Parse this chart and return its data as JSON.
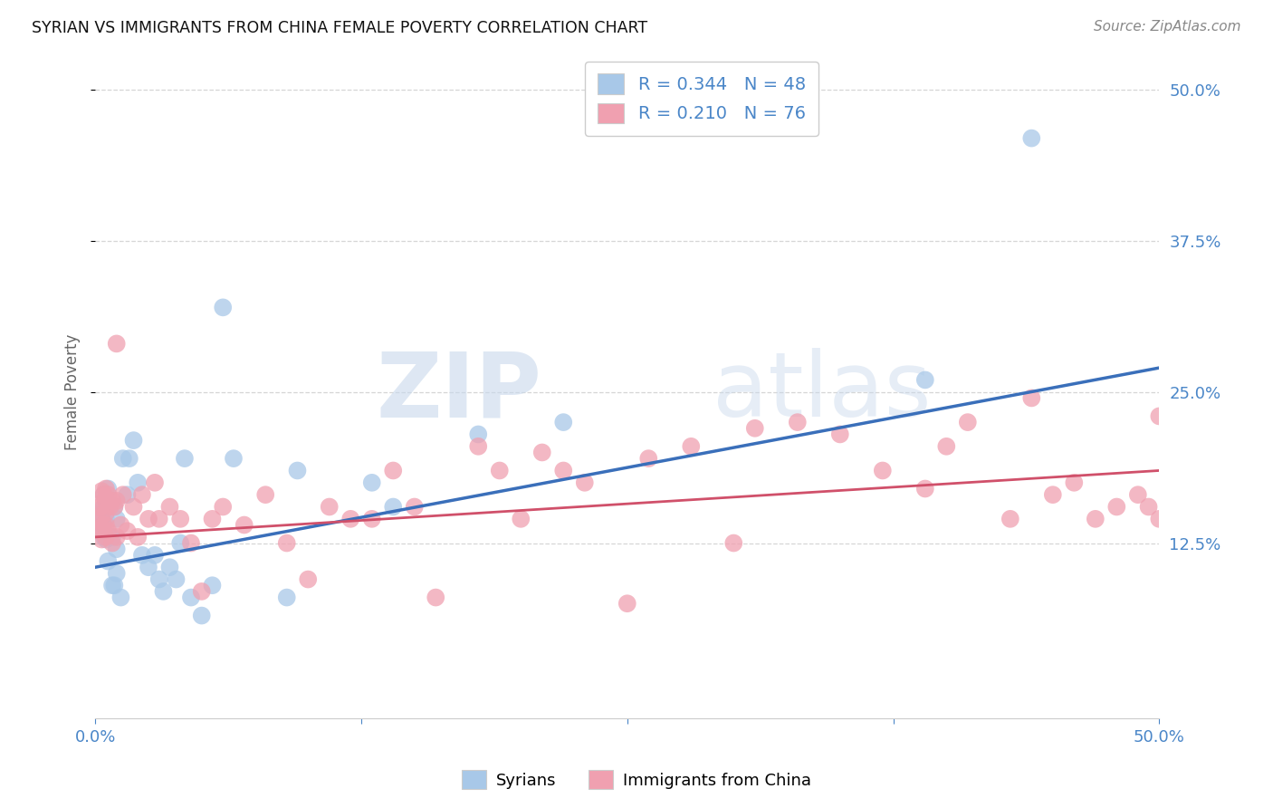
{
  "title": "SYRIAN VS IMMIGRANTS FROM CHINA FEMALE POVERTY CORRELATION CHART",
  "source": "Source: ZipAtlas.com",
  "ylabel": "Female Poverty",
  "xlim": [
    0.0,
    0.5
  ],
  "ylim": [
    -0.02,
    0.52
  ],
  "ytick_values": [
    0.125,
    0.25,
    0.375,
    0.5
  ],
  "xtick_values": [
    0.0,
    0.5
  ],
  "blue_R": 0.344,
  "blue_N": 48,
  "pink_R": 0.21,
  "pink_N": 76,
  "blue_color": "#a8c8e8",
  "pink_color": "#f0a0b0",
  "blue_line_color": "#3a6fba",
  "pink_line_color": "#d0506a",
  "legend_label_blue": "Syrians",
  "legend_label_pink": "Immigrants from China",
  "watermark_zip": "ZIP",
  "watermark_atlas": "atlas",
  "blue_scatter_x": [
    0.002,
    0.003,
    0.003,
    0.004,
    0.004,
    0.004,
    0.004,
    0.005,
    0.005,
    0.005,
    0.006,
    0.006,
    0.007,
    0.008,
    0.008,
    0.009,
    0.009,
    0.01,
    0.01,
    0.01,
    0.012,
    0.013,
    0.015,
    0.016,
    0.018,
    0.02,
    0.022,
    0.025,
    0.028,
    0.03,
    0.032,
    0.035,
    0.038,
    0.04,
    0.042,
    0.045,
    0.05,
    0.055,
    0.06,
    0.065,
    0.09,
    0.095,
    0.13,
    0.14,
    0.18,
    0.22,
    0.39,
    0.44
  ],
  "blue_scatter_y": [
    0.14,
    0.145,
    0.15,
    0.13,
    0.135,
    0.155,
    0.165,
    0.128,
    0.145,
    0.16,
    0.11,
    0.17,
    0.13,
    0.09,
    0.13,
    0.09,
    0.155,
    0.1,
    0.12,
    0.145,
    0.08,
    0.195,
    0.165,
    0.195,
    0.21,
    0.175,
    0.115,
    0.105,
    0.115,
    0.095,
    0.085,
    0.105,
    0.095,
    0.125,
    0.195,
    0.08,
    0.065,
    0.09,
    0.32,
    0.195,
    0.08,
    0.185,
    0.175,
    0.155,
    0.215,
    0.225,
    0.26,
    0.46
  ],
  "pink_scatter_x": [
    0.001,
    0.002,
    0.002,
    0.003,
    0.003,
    0.003,
    0.003,
    0.003,
    0.004,
    0.004,
    0.005,
    0.005,
    0.005,
    0.005,
    0.005,
    0.006,
    0.006,
    0.007,
    0.008,
    0.008,
    0.009,
    0.01,
    0.01,
    0.01,
    0.012,
    0.013,
    0.015,
    0.018,
    0.02,
    0.022,
    0.025,
    0.028,
    0.03,
    0.035,
    0.04,
    0.045,
    0.05,
    0.055,
    0.06,
    0.07,
    0.08,
    0.09,
    0.1,
    0.11,
    0.12,
    0.13,
    0.14,
    0.15,
    0.16,
    0.18,
    0.19,
    0.2,
    0.21,
    0.22,
    0.23,
    0.25,
    0.26,
    0.28,
    0.3,
    0.31,
    0.33,
    0.35,
    0.37,
    0.39,
    0.4,
    0.41,
    0.43,
    0.44,
    0.45,
    0.46,
    0.47,
    0.48,
    0.49,
    0.495,
    0.5,
    0.5
  ],
  "pink_scatter_y": [
    0.145,
    0.135,
    0.155,
    0.128,
    0.138,
    0.148,
    0.158,
    0.168,
    0.14,
    0.165,
    0.13,
    0.14,
    0.15,
    0.16,
    0.17,
    0.135,
    0.165,
    0.155,
    0.125,
    0.16,
    0.155,
    0.13,
    0.16,
    0.29,
    0.14,
    0.165,
    0.135,
    0.155,
    0.13,
    0.165,
    0.145,
    0.175,
    0.145,
    0.155,
    0.145,
    0.125,
    0.085,
    0.145,
    0.155,
    0.14,
    0.165,
    0.125,
    0.095,
    0.155,
    0.145,
    0.145,
    0.185,
    0.155,
    0.08,
    0.205,
    0.185,
    0.145,
    0.2,
    0.185,
    0.175,
    0.075,
    0.195,
    0.205,
    0.125,
    0.22,
    0.225,
    0.215,
    0.185,
    0.17,
    0.205,
    0.225,
    0.145,
    0.245,
    0.165,
    0.175,
    0.145,
    0.155,
    0.165,
    0.155,
    0.145,
    0.23
  ],
  "blue_trend_x0": 0.0,
  "blue_trend_x1": 0.5,
  "blue_trend_y0": 0.105,
  "blue_trend_y1": 0.27,
  "pink_trend_x0": 0.0,
  "pink_trend_x1": 0.5,
  "pink_trend_y0": 0.13,
  "pink_trend_y1": 0.185
}
